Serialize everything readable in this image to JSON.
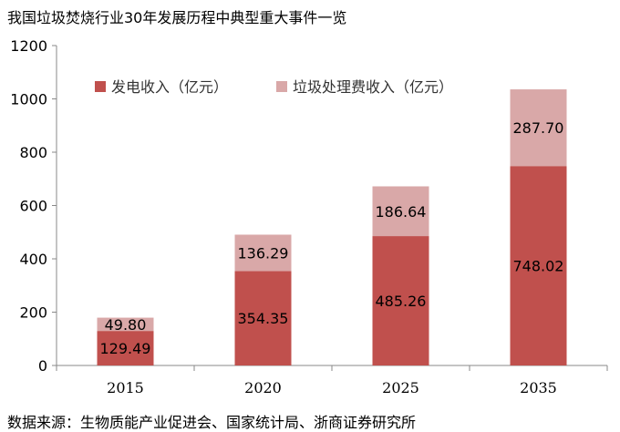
{
  "title": "我国垃圾焚烧行业30年发展历程中典型重大事件一览",
  "source": "数据来源：生物质能产业促进会、国家统计局、浙商证券研究所",
  "chart_data": {
    "type": "bar",
    "stacked": true,
    "categories": [
      "2015",
      "2020",
      "2025",
      "2035"
    ],
    "series": [
      {
        "name": "发电收入（亿元）",
        "color": "#c0504d",
        "values": [
          129.49,
          354.35,
          485.26,
          748.02
        ],
        "labels": [
          "129.49",
          "354.35",
          "485.26",
          "748.02"
        ]
      },
      {
        "name": "垃圾处理费收入（亿元）",
        "color": "#d9a8a8",
        "values": [
          49.8,
          136.29,
          186.64,
          287.7
        ],
        "labels": [
          "49.80",
          "136.29",
          "186.64",
          "287.70"
        ]
      }
    ],
    "ylim": [
      0,
      1200
    ],
    "yticks": [
      "0",
      "200",
      "400",
      "600",
      "800",
      "1000",
      "1200"
    ],
    "legend_position": "top-left",
    "grid": false
  }
}
